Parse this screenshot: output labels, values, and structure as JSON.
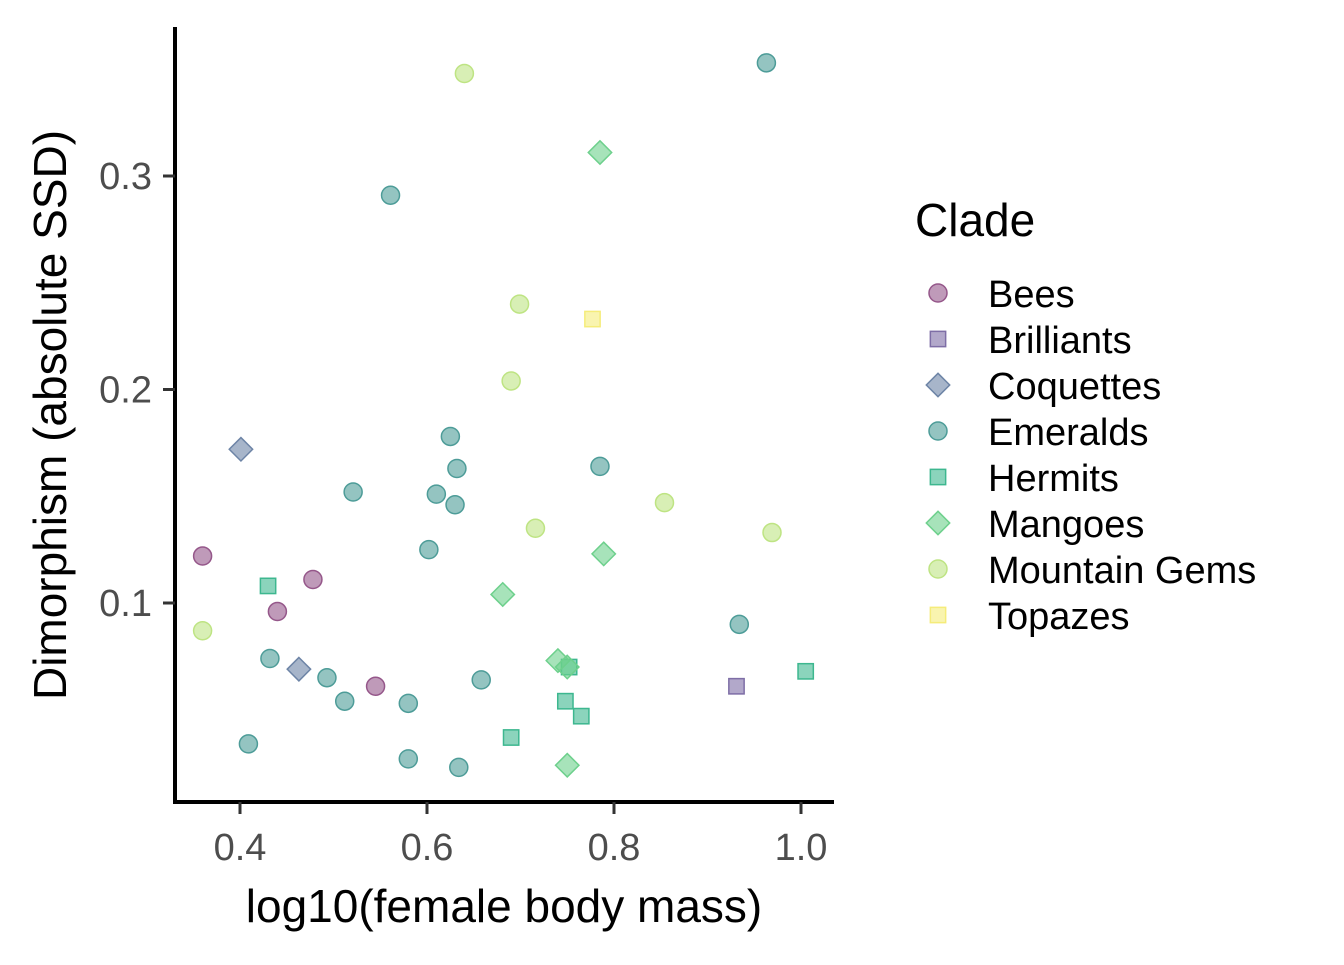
{
  "chart_data": {
    "type": "scatter",
    "xlabel": "log10(female body mass)",
    "ylabel": "Dimorphism (absolute SSD)",
    "xlim": [
      0.33,
      1.02
    ],
    "ylim": [
      0.011,
      0.37
    ],
    "x_ticks": [
      0.4,
      0.6,
      0.8,
      1.0
    ],
    "x_tick_labels": [
      "0.4",
      "0.6",
      "0.8",
      "1.0"
    ],
    "y_ticks": [
      0.1,
      0.2,
      0.3
    ],
    "y_tick_labels": [
      "0.1",
      "0.2",
      "0.3"
    ],
    "grid": false,
    "legend_placement": "right",
    "legend_title": "Clade",
    "series": [
      {
        "name": "Bees",
        "shape": "circle",
        "color": "#95578A",
        "x": [
          0.36,
          0.44,
          0.478,
          0.545
        ],
        "y": [
          0.122,
          0.096,
          0.111,
          0.061
        ]
      },
      {
        "name": "Brilliants",
        "shape": "square",
        "color": "#7E6EA6",
        "x": [
          0.931
        ],
        "y": [
          0.061
        ]
      },
      {
        "name": "Coquettes",
        "shape": "diamond",
        "color": "#6D84A6",
        "x": [
          0.401,
          0.463
        ],
        "y": [
          0.172,
          0.069
        ]
      },
      {
        "name": "Emeralds",
        "shape": "circle",
        "color": "#4D9C98",
        "x": [
          0.409,
          0.432,
          0.493,
          0.512,
          0.521,
          0.561,
          0.58,
          0.58,
          0.602,
          0.61,
          0.625,
          0.63,
          0.632,
          0.634,
          0.658,
          0.785,
          0.934,
          0.963
        ],
        "y": [
          0.034,
          0.074,
          0.065,
          0.054,
          0.152,
          0.291,
          0.053,
          0.027,
          0.125,
          0.151,
          0.178,
          0.146,
          0.163,
          0.023,
          0.064,
          0.164,
          0.09,
          0.353
        ]
      },
      {
        "name": "Hermits",
        "shape": "square",
        "color": "#3DB78F",
        "x": [
          0.43,
          0.69,
          0.748,
          0.752,
          0.765,
          1.005
        ],
        "y": [
          0.108,
          0.037,
          0.054,
          0.07,
          0.047,
          0.068
        ]
      },
      {
        "name": "Mangoes",
        "shape": "diamond",
        "color": "#6DD08C",
        "x": [
          0.681,
          0.74,
          0.75,
          0.75,
          0.785,
          0.789
        ],
        "y": [
          0.104,
          0.073,
          0.07,
          0.024,
          0.311,
          0.123
        ]
      },
      {
        "name": "Mountain Gems",
        "shape": "circle",
        "color": "#BEE483",
        "x": [
          0.36,
          0.64,
          0.69,
          0.699,
          0.716,
          0.854,
          0.969
        ],
        "y": [
          0.087,
          0.348,
          0.204,
          0.24,
          0.135,
          0.147,
          0.133
        ]
      },
      {
        "name": "Topazes",
        "shape": "square",
        "color": "#F5EC7A",
        "x": [
          0.777
        ],
        "y": [
          0.233
        ]
      }
    ]
  }
}
